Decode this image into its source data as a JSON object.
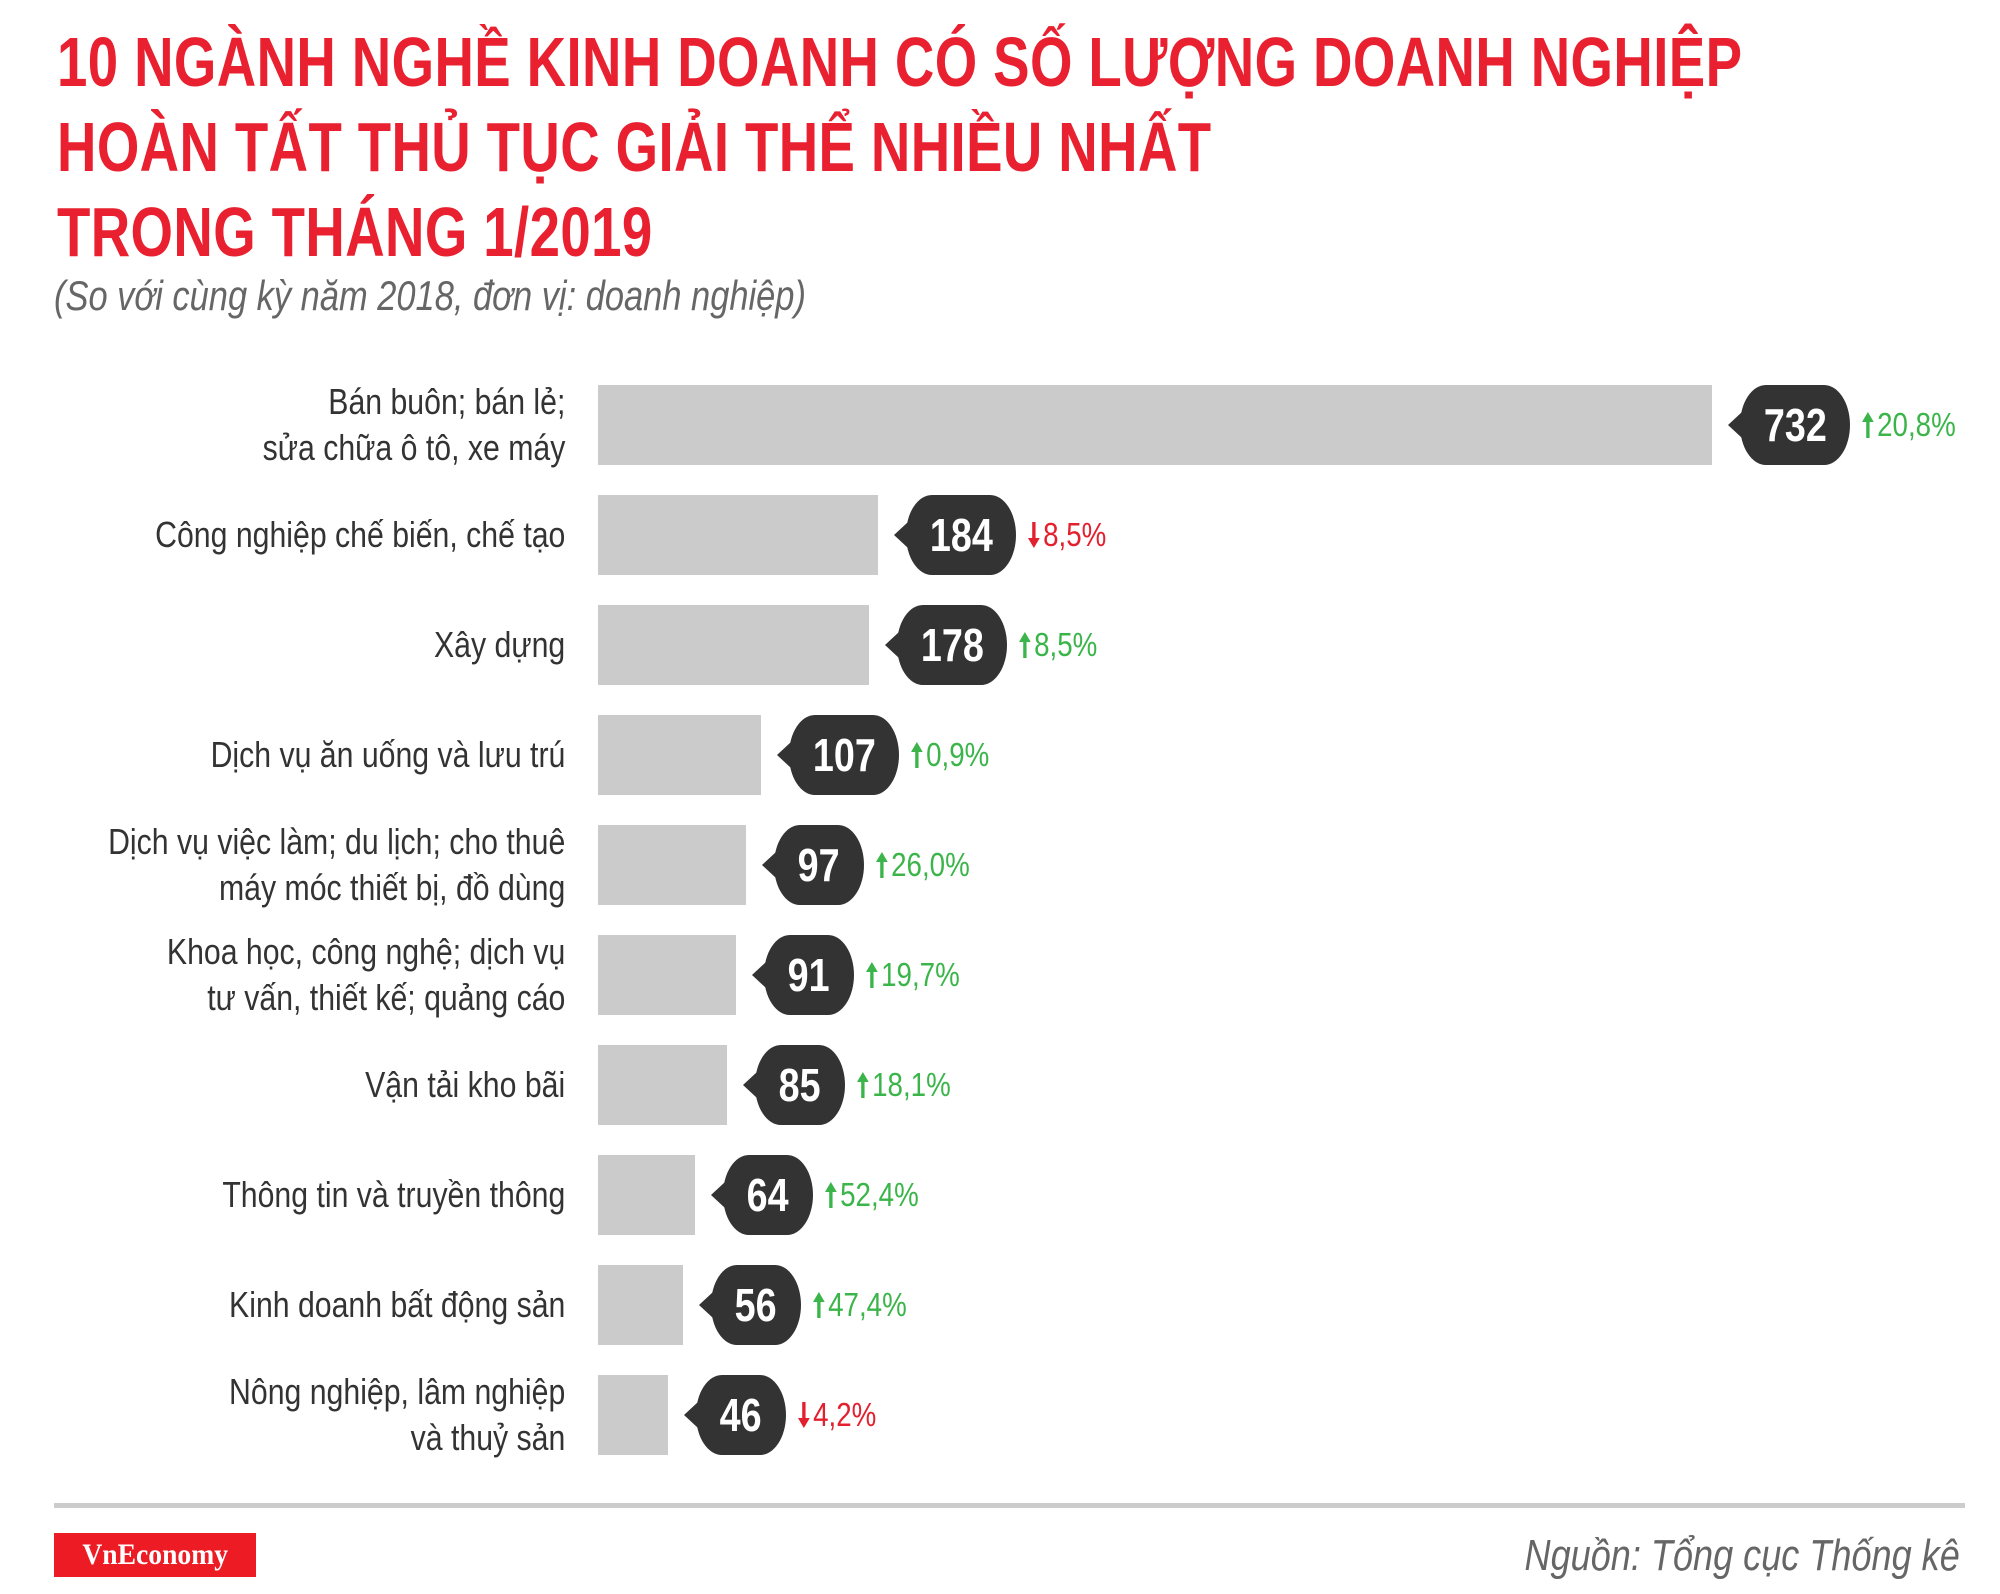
{
  "header": {
    "title_lines": [
      "10 NGÀNH NGHỀ KINH DOANH CÓ SỐ LƯỢNG DOANH NGHIỆP",
      "HOÀN TẤT THỦ TỤC GIẢI THỂ NHIỀU NHẤT",
      "TRONG THÁNG 1/2019"
    ],
    "subtitle": "(So với cùng kỳ năm 2018, đơn vị: doanh nghiệp)"
  },
  "colors": {
    "title_red": "#e8202f",
    "bar_gray": "#cccbcc",
    "badge_dark": "#333333",
    "up_green": "#3bb54a",
    "down_red": "#e3202e",
    "logo_red": "#ed1c24"
  },
  "chart_data": {
    "type": "bar",
    "orientation": "horizontal",
    "title": "10 NGÀNH NGHỀ KINH DOANH CÓ SỐ LƯỢNG DOANH NGHIỆP HOÀN TẤT THỦ TỤC GIẢI THỂ NHIỀU NHẤT TRONG THÁNG 1/2019",
    "subtitle": "(So với cùng kỳ năm 2018, đơn vị: doanh nghiệp)",
    "xlabel": "",
    "ylabel": "",
    "grid": false,
    "legend": null,
    "categories": [
      "Bán buôn; bán lẻ; sửa chữa ô tô, xe máy",
      "Công nghiệp chế biến, chế tạo",
      "Xây dựng",
      "Dịch vụ ăn uống và lưu trú",
      "Dịch vụ việc làm; du lịch; cho thuê máy móc thiết bị, đồ dùng",
      "Khoa học, công nghệ; dịch vụ tư vấn, thiết kế; quảng cáo",
      "Vận tải kho bãi",
      "Thông tin và truyền thông",
      "Kinh doanh bất động sản",
      "Nông nghiệp, lâm nghiệp và thuỷ sản"
    ],
    "values": [
      732,
      184,
      178,
      107,
      97,
      91,
      85,
      64,
      56,
      46
    ],
    "change_vs_2018": [
      "+20,8%",
      "-8,5%",
      "+8,5%",
      "+0,9%",
      "+26,0%",
      "+19,7%",
      "+18,1%",
      "+52,4%",
      "+47,4%",
      "-4,2%"
    ],
    "xlim": [
      0,
      732
    ]
  },
  "rows": [
    {
      "label_lines": [
        "Bán buôn; bán lẻ;",
        "sửa chữa ô tô, xe máy"
      ],
      "value": "732",
      "num": 732,
      "change": "20,8%",
      "direction": "up"
    },
    {
      "label_lines": [
        "Công nghiệp chế biến, chế tạo"
      ],
      "value": "184",
      "num": 184,
      "change": "8,5%",
      "direction": "down"
    },
    {
      "label_lines": [
        "Xây dựng"
      ],
      "value": "178",
      "num": 178,
      "change": "8,5%",
      "direction": "up"
    },
    {
      "label_lines": [
        "Dịch vụ ăn uống và lưu trú"
      ],
      "value": "107",
      "num": 107,
      "change": "0,9%",
      "direction": "up"
    },
    {
      "label_lines": [
        "Dịch vụ việc làm; du lịch; cho thuê",
        "máy móc thiết bị, đồ dùng"
      ],
      "value": "97",
      "num": 97,
      "change": "26,0%",
      "direction": "up"
    },
    {
      "label_lines": [
        "Khoa học, công nghệ; dịch vụ ",
        "tư vấn, thiết kế; quảng cáo"
      ],
      "value": "91",
      "num": 91,
      "change": "19,7%",
      "direction": "up"
    },
    {
      "label_lines": [
        "Vận tải kho bãi"
      ],
      "value": "85",
      "num": 85,
      "change": "18,1%",
      "direction": "up"
    },
    {
      "label_lines": [
        "Thông tin và truyền thông"
      ],
      "value": "64",
      "num": 64,
      "change": "52,4%",
      "direction": "up"
    },
    {
      "label_lines": [
        "Kinh doanh bất động sản"
      ],
      "value": "56",
      "num": 56,
      "change": "47,4%",
      "direction": "up"
    },
    {
      "label_lines": [
        "Nông nghiệp, lâm nghiệp",
        "và thuỷ sản"
      ],
      "value": "46",
      "num": 46,
      "change": "4,2%",
      "direction": "down"
    }
  ],
  "footer": {
    "logo_text": "VnEconomy",
    "source": "Nguồn: Tổng cục Thống kê"
  }
}
